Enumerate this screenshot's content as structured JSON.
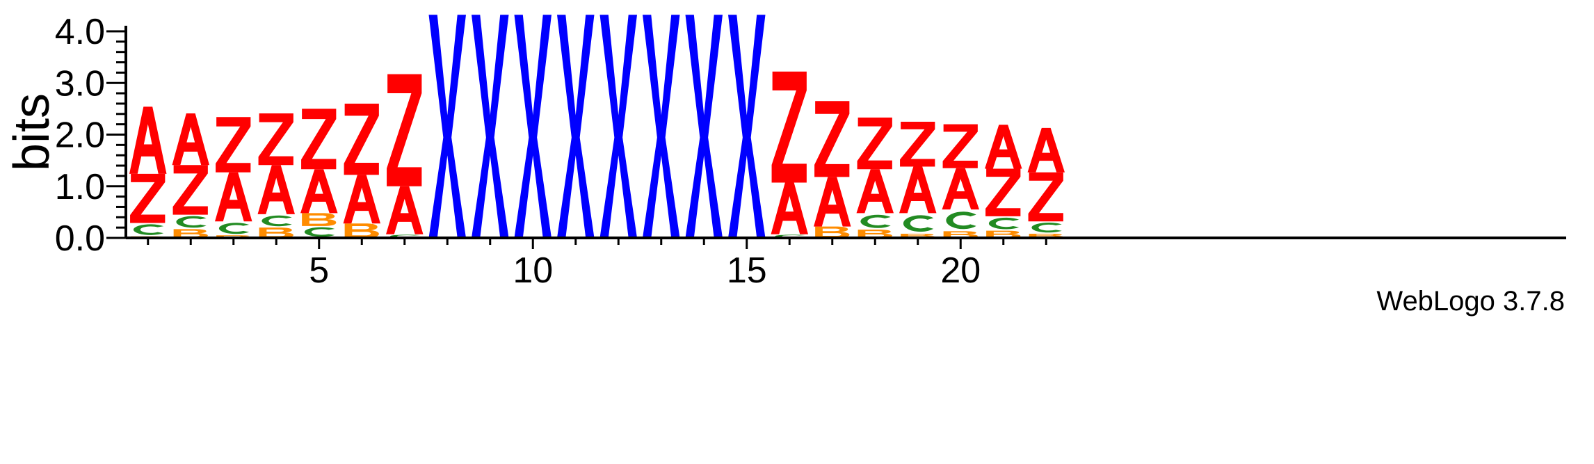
{
  "chart_data": {
    "type": "sequence_logo",
    "ylabel": "bits",
    "ylim": [
      0,
      4.0
    ],
    "y_ticks": [
      "0.0",
      "1.0",
      "2.0",
      "3.0",
      "4.0"
    ],
    "x_ticks": [
      5,
      10,
      15,
      20
    ],
    "positions_count": 22,
    "colors": {
      "A": "#ff0000",
      "Z": "#ff0000",
      "X": "#0000ff",
      "C": "#228b22",
      "B": "#ff8c00"
    },
    "positions": [
      {
        "pos": 1,
        "stack": [
          {
            "letter": "B",
            "bits": 0.03
          },
          {
            "letter": "C",
            "bits": 0.26
          },
          {
            "letter": "Z",
            "bits": 0.95
          },
          {
            "letter": "A",
            "bits": 1.3
          }
        ]
      },
      {
        "pos": 2,
        "stack": [
          {
            "letter": "B",
            "bits": 0.17
          },
          {
            "letter": "C",
            "bits": 0.28
          },
          {
            "letter": "Z",
            "bits": 0.96
          },
          {
            "letter": "A",
            "bits": 1.0
          }
        ]
      },
      {
        "pos": 3,
        "stack": [
          {
            "letter": "B",
            "bits": 0.05
          },
          {
            "letter": "C",
            "bits": 0.27
          },
          {
            "letter": "A",
            "bits": 0.95
          },
          {
            "letter": "Z",
            "bits": 1.07
          }
        ]
      },
      {
        "pos": 4,
        "stack": [
          {
            "letter": "B",
            "bits": 0.2
          },
          {
            "letter": "C",
            "bits": 0.26
          },
          {
            "letter": "A",
            "bits": 0.95
          },
          {
            "letter": "Z",
            "bits": 1.0
          }
        ]
      },
      {
        "pos": 5,
        "stack": [
          {
            "letter": "C",
            "bits": 0.23
          },
          {
            "letter": "B",
            "bits": 0.25
          },
          {
            "letter": "A",
            "bits": 0.85
          },
          {
            "letter": "Z",
            "bits": 1.17
          }
        ]
      },
      {
        "pos": 6,
        "stack": [
          {
            "letter": "B",
            "bits": 0.28
          },
          {
            "letter": "A",
            "bits": 0.94
          },
          {
            "letter": "Z",
            "bits": 1.38
          }
        ]
      },
      {
        "pos": 7,
        "stack": [
          {
            "letter": "C",
            "bits": 0.07
          },
          {
            "letter": "A",
            "bits": 0.93
          },
          {
            "letter": "Z",
            "bits": 2.17
          }
        ]
      },
      {
        "pos": 8,
        "stack": [
          {
            "letter": "X",
            "bits": 4.32
          }
        ]
      },
      {
        "pos": 9,
        "stack": [
          {
            "letter": "X",
            "bits": 4.32
          }
        ]
      },
      {
        "pos": 10,
        "stack": [
          {
            "letter": "X",
            "bits": 4.32
          }
        ]
      },
      {
        "pos": 11,
        "stack": [
          {
            "letter": "X",
            "bits": 4.32
          }
        ]
      },
      {
        "pos": 12,
        "stack": [
          {
            "letter": "X",
            "bits": 4.32
          }
        ]
      },
      {
        "pos": 13,
        "stack": [
          {
            "letter": "X",
            "bits": 4.32
          }
        ]
      },
      {
        "pos": 14,
        "stack": [
          {
            "letter": "X",
            "bits": 4.32
          }
        ]
      },
      {
        "pos": 15,
        "stack": [
          {
            "letter": "X",
            "bits": 4.32
          }
        ]
      },
      {
        "pos": 16,
        "stack": [
          {
            "letter": "C",
            "bits": 0.07
          },
          {
            "letter": "A",
            "bits": 1.0
          },
          {
            "letter": "Z",
            "bits": 2.15
          }
        ]
      },
      {
        "pos": 17,
        "stack": [
          {
            "letter": "B",
            "bits": 0.22
          },
          {
            "letter": "A",
            "bits": 0.96
          },
          {
            "letter": "Z",
            "bits": 1.47
          }
        ]
      },
      {
        "pos": 18,
        "stack": [
          {
            "letter": "B",
            "bits": 0.16
          },
          {
            "letter": "C",
            "bits": 0.32
          },
          {
            "letter": "A",
            "bits": 0.85
          },
          {
            "letter": "Z",
            "bits": 1.0
          }
        ]
      },
      {
        "pos": 19,
        "stack": [
          {
            "letter": "B",
            "bits": 0.08
          },
          {
            "letter": "C",
            "bits": 0.4
          },
          {
            "letter": "A",
            "bits": 0.9
          },
          {
            "letter": "Z",
            "bits": 0.87
          }
        ]
      },
      {
        "pos": 20,
        "stack": [
          {
            "letter": "B",
            "bits": 0.13
          },
          {
            "letter": "C",
            "bits": 0.42
          },
          {
            "letter": "A",
            "bits": 0.8
          },
          {
            "letter": "Z",
            "bits": 0.85
          }
        ]
      },
      {
        "pos": 21,
        "stack": [
          {
            "letter": "B",
            "bits": 0.14
          },
          {
            "letter": "C",
            "bits": 0.28
          },
          {
            "letter": "Z",
            "bits": 0.92
          },
          {
            "letter": "A",
            "bits": 0.85
          }
        ]
      },
      {
        "pos": 22,
        "stack": [
          {
            "letter": "B",
            "bits": 0.08
          },
          {
            "letter": "C",
            "bits": 0.24
          },
          {
            "letter": "Z",
            "bits": 0.95
          },
          {
            "letter": "A",
            "bits": 0.86
          }
        ]
      }
    ]
  },
  "footer": {
    "credit": "WebLogo 3.7.8"
  }
}
